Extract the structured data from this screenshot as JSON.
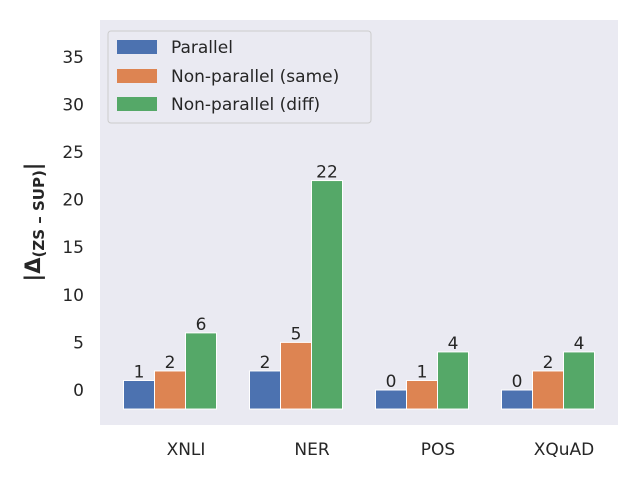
{
  "chart_data": {
    "type": "bar",
    "categories": [
      "XNLI",
      "NER",
      "POS",
      "XQuAD"
    ],
    "series": [
      {
        "name": "Parallel",
        "values": [
          1,
          2,
          0,
          0
        ],
        "color": "#4c72b0"
      },
      {
        "name": "Non-parallel (same)",
        "values": [
          2,
          5,
          1,
          2
        ],
        "color": "#dd8452"
      },
      {
        "name": "Non-parallel (diff)",
        "values": [
          6,
          22,
          4,
          4
        ],
        "color": "#55a868"
      }
    ],
    "bar_base": -2,
    "ylabel": "|Δ(ZS – SUP)|",
    "ylabel_main": "|Δ",
    "ylabel_sub": "(ZS – SUP)",
    "ylabel_end": "|",
    "ylim": [
      -3.9,
      38.6
    ],
    "yticks": [
      0,
      5,
      10,
      15,
      20,
      25,
      30,
      35
    ],
    "grid": false,
    "legend_position": "top-left",
    "background_color": "#eaeaf2"
  }
}
